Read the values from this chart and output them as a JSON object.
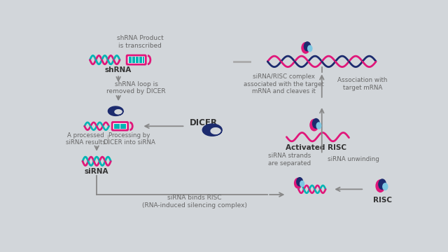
{
  "bg_color": "#d2d6da",
  "magenta": "#e0177a",
  "teal": "#00b5b5",
  "navy": "#1c2b6e",
  "light_blue": "#7ec8e3",
  "text_color": "#666666",
  "labels": {
    "shrna_product": "shRNA Product\nis transcribed",
    "shrna": "shRNA",
    "shrna_loop": "shRNA loop is\nremoved by DICER",
    "dicer": "DICER",
    "a_processed": "A processed\nsiRNA results",
    "processing_by": "Processing by\nDICER into siRNA",
    "sirna": "siRNA",
    "sirna_binds": "siRNA binds RISC\n(RNA-induced silencing complex)",
    "sirna_strands": "siRNA strands\nare separated",
    "sirna_unwinding": "siRNA unwinding",
    "activated_risc": "Activated RISC",
    "sirna_risc": "siRNA/RISC complex\nassociated with the target\nmRNA and cleaves it",
    "association": "Association with\ntarget mRNA",
    "risc": "RISC"
  }
}
